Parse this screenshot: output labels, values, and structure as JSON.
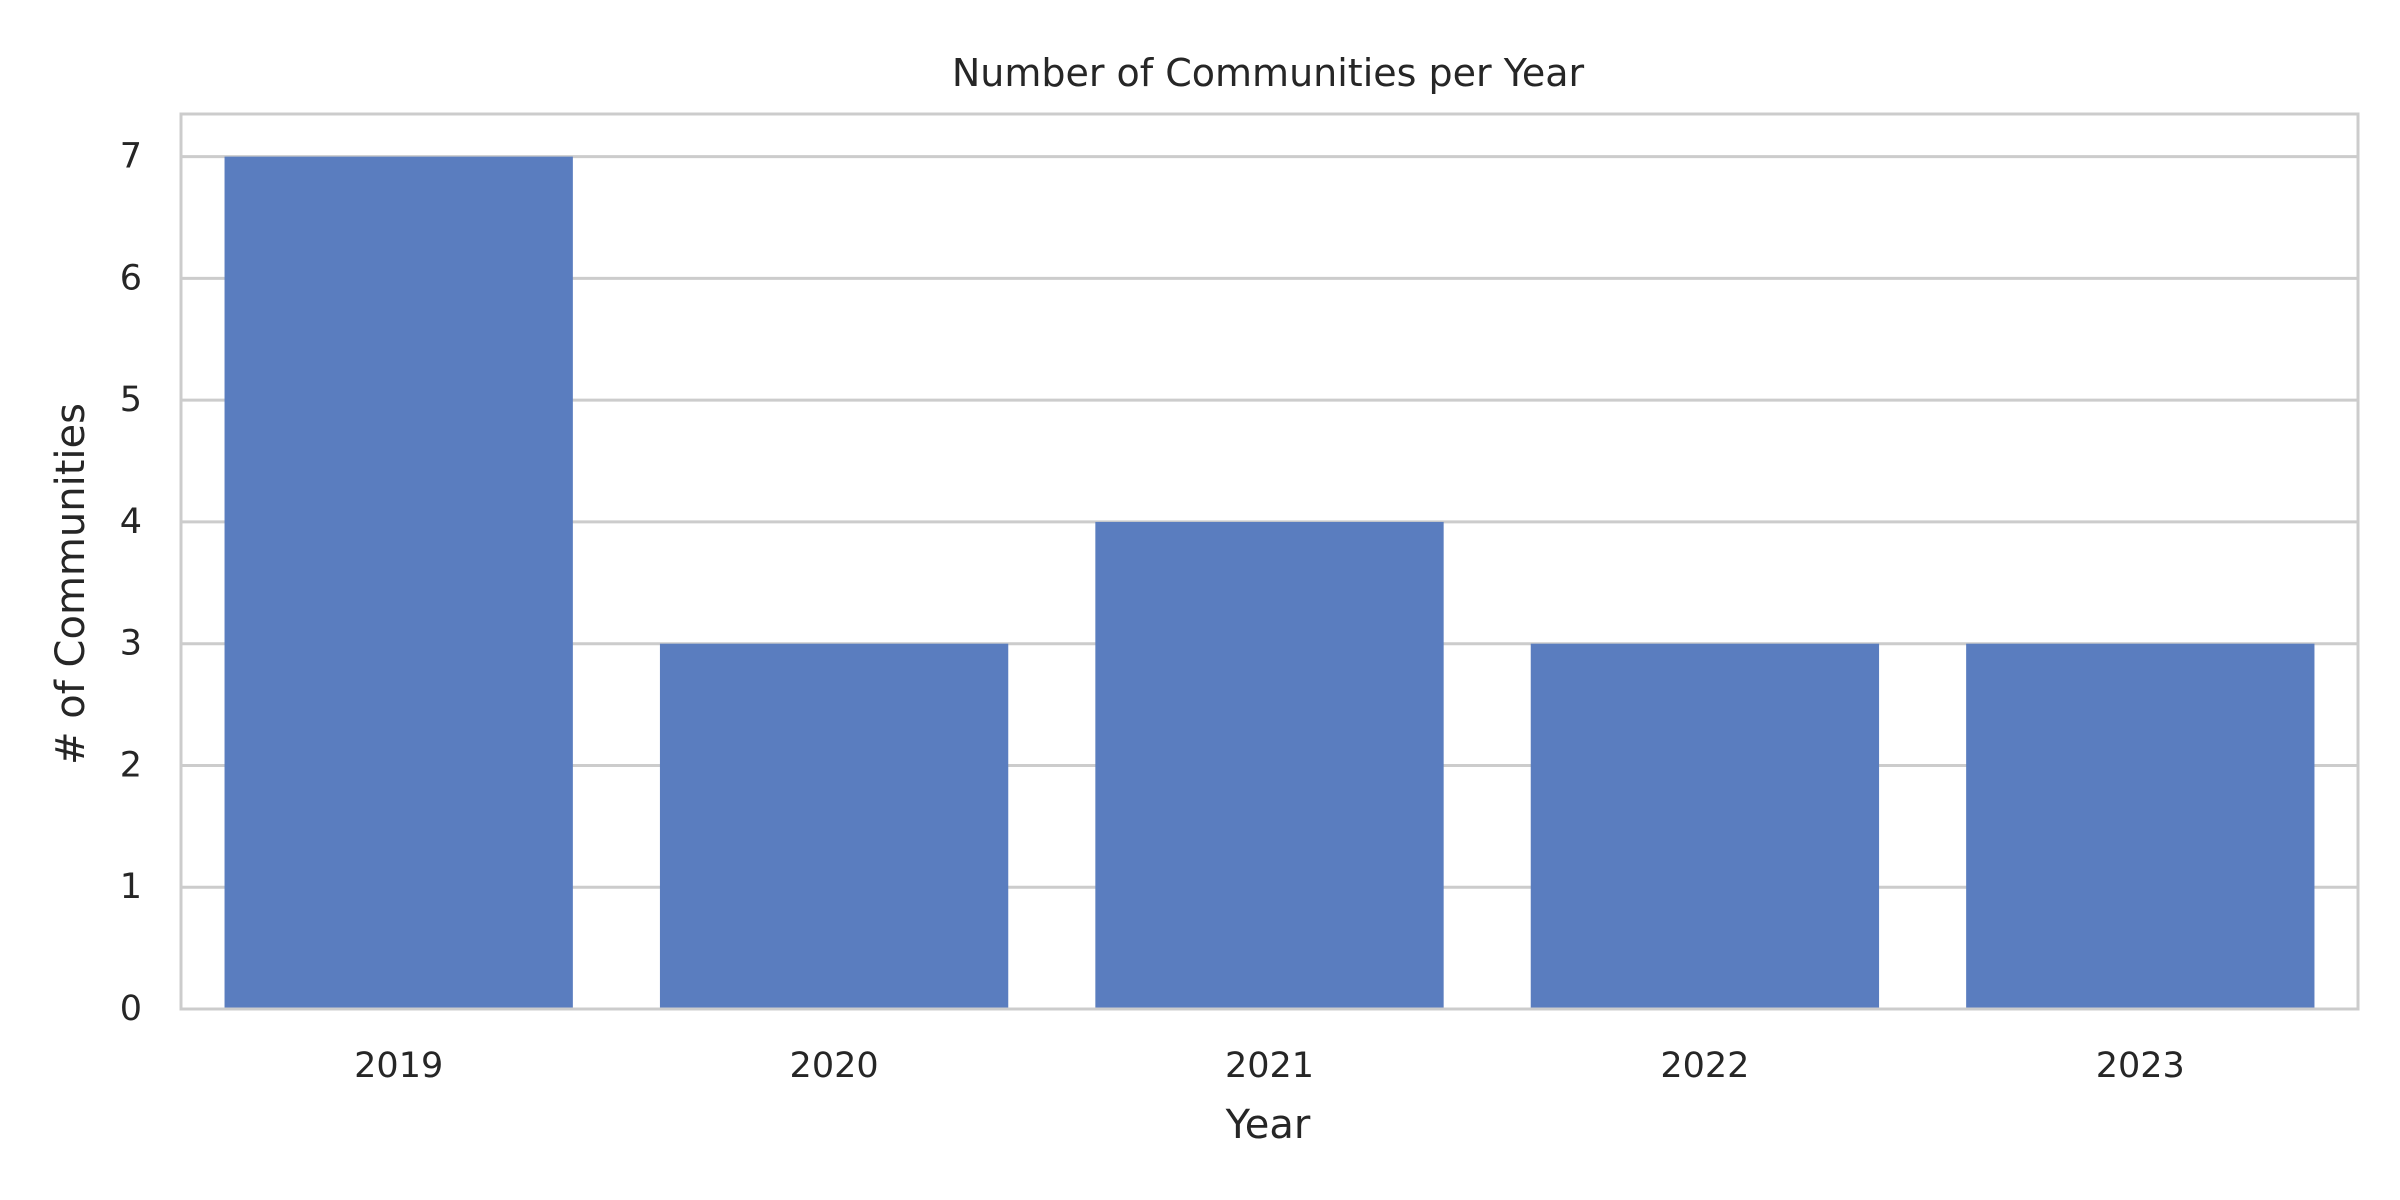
{
  "chart_data": {
    "type": "bar",
    "title": "Number of Communities per Year",
    "xlabel": "Year",
    "ylabel": "# of Communities",
    "categories": [
      "2019",
      "2020",
      "2021",
      "2022",
      "2023"
    ],
    "values": [
      7,
      3,
      4,
      3,
      3
    ],
    "ylim": [
      0,
      7.35
    ],
    "yticks": [
      "0",
      "1",
      "2",
      "3",
      "4",
      "5",
      "6",
      "7"
    ],
    "grid": "y",
    "legend": "none",
    "colors": {
      "bar": "#5a7dbf",
      "grid": "#cccccc",
      "frame": "#cccccc",
      "text": "#262626"
    }
  }
}
